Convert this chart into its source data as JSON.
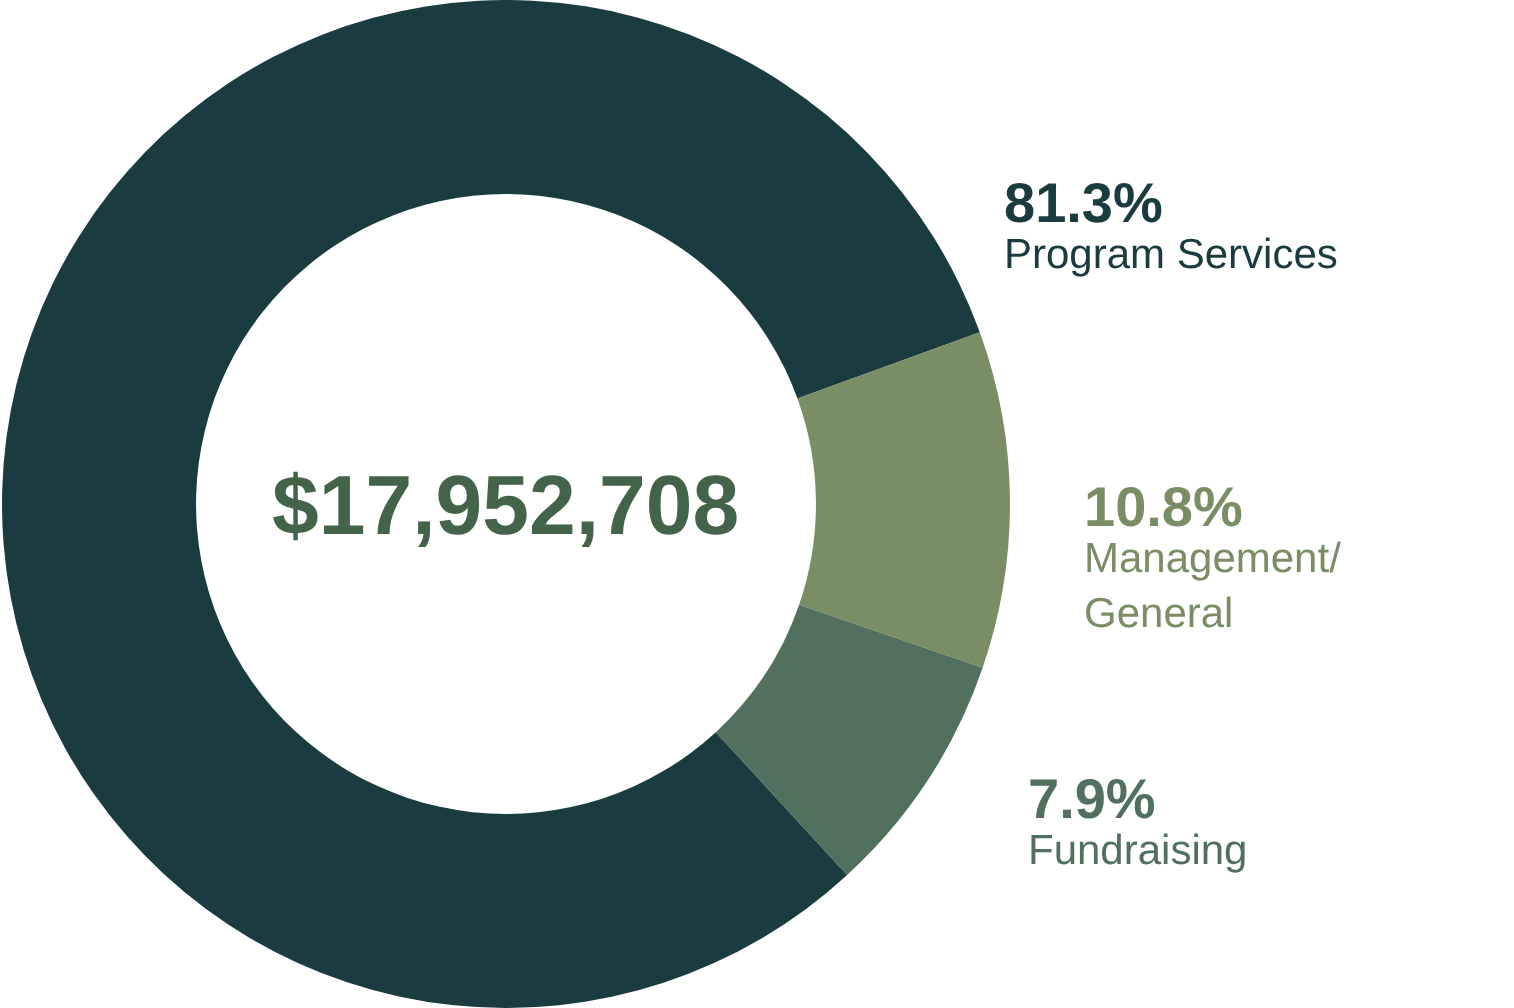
{
  "chart_data": {
    "type": "donut",
    "categories": [
      "Program Services",
      "Management/General",
      "Fundraising"
    ],
    "values": [
      81.3,
      10.8,
      7.9
    ],
    "value_labels": [
      "81.3%",
      "10.8%",
      "7.9%"
    ],
    "colors": [
      "#1a3b40",
      "#7a8e66",
      "#51705e"
    ],
    "annotations": [
      "$17,952,708"
    ],
    "legend": false
  }
}
